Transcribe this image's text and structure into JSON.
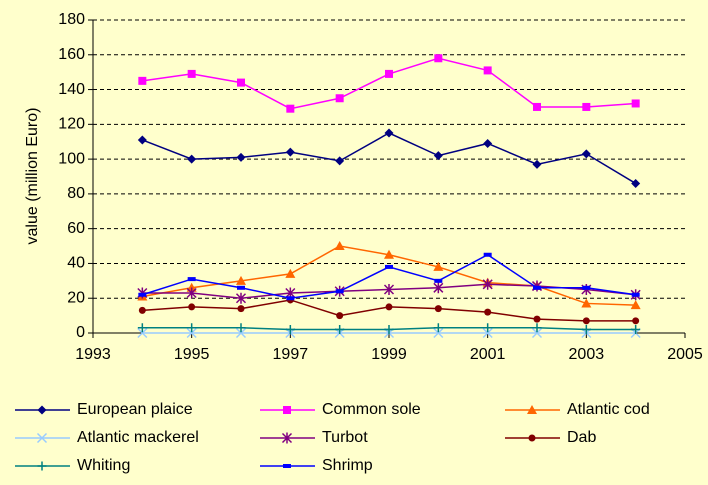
{
  "chart_data": {
    "type": "line",
    "y_label": "value (million Euro)",
    "x": [
      1994,
      1995,
      1996,
      1997,
      1998,
      1999,
      2000,
      2001,
      2002,
      2003,
      2004
    ],
    "xlim": [
      1993,
      2005
    ],
    "xticks": [
      1993,
      1995,
      1997,
      1999,
      2001,
      2003,
      2005
    ],
    "ylim": [
      0,
      180
    ],
    "yticks": [
      0,
      20,
      40,
      60,
      80,
      100,
      120,
      140,
      160,
      180
    ],
    "grid": true,
    "legend": "bottom",
    "series": [
      {
        "name": "European plaice",
        "color": "#000080",
        "marker": "diamond",
        "values": [
          111,
          100,
          101,
          104,
          99,
          115,
          102,
          109,
          97,
          103,
          86
        ]
      },
      {
        "name": "Common sole",
        "color": "#ff00ff",
        "marker": "square",
        "values": [
          145,
          149,
          144,
          129,
          135,
          149,
          158,
          151,
          130,
          130,
          132
        ]
      },
      {
        "name": "Atlantic cod",
        "color": "#ff6600",
        "marker": "triangle",
        "values": [
          21,
          26,
          30,
          34,
          50,
          45,
          38,
          29,
          27,
          17,
          16
        ]
      },
      {
        "name": "Atlantic mackerel",
        "color": "#99ccff",
        "marker": "x",
        "values": [
          0,
          0,
          0,
          0,
          0,
          0,
          0,
          0,
          0,
          0,
          0
        ]
      },
      {
        "name": "Turbot",
        "color": "#800080",
        "marker": "star",
        "values": [
          23,
          23,
          20,
          23,
          24,
          25,
          26,
          28,
          27,
          25,
          22
        ]
      },
      {
        "name": "Dab",
        "color": "#800000",
        "marker": "circle",
        "values": [
          13,
          15,
          14,
          19,
          10,
          15,
          14,
          12,
          8,
          7,
          7
        ]
      },
      {
        "name": "Whiting",
        "color": "#008080",
        "marker": "plus",
        "values": [
          3,
          3,
          3,
          2,
          2,
          2,
          3,
          3,
          3,
          2,
          2
        ]
      },
      {
        "name": "Shrimp",
        "color": "#0000ff",
        "marker": "dash",
        "values": [
          22,
          31,
          26,
          20,
          24,
          38,
          30,
          45,
          26,
          26,
          22
        ]
      }
    ]
  }
}
